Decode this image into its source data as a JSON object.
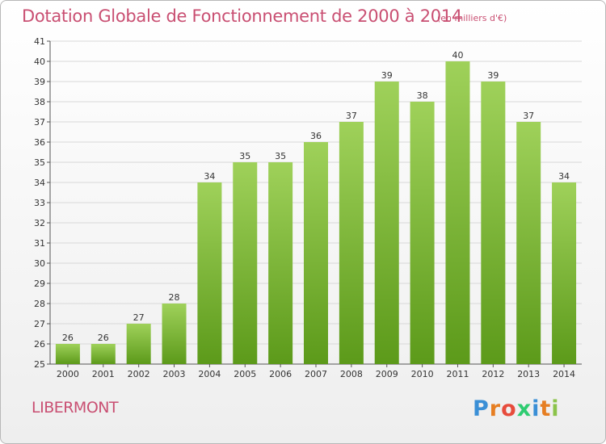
{
  "title": "Dotation Globale de Fonctionnement de 2000 à 2014",
  "subtitle": "(en milliers d'€)",
  "commune": "LIBERMONT",
  "logo": {
    "letters": [
      "P",
      "r",
      "o",
      "x",
      "i",
      "t",
      "i"
    ],
    "colors": [
      "#3a8fd6",
      "#e67e22",
      "#e74c3c",
      "#2ecc71",
      "#3a8fd6",
      "#e67e22",
      "#8bc34a"
    ]
  },
  "colors": {
    "title": "#c94f72",
    "bar_top": "#9fd15a",
    "bar_bottom": "#5c9a1a",
    "grid": "#d8d8d8"
  },
  "chart_data": {
    "type": "bar",
    "title": "Dotation Globale de Fonctionnement de 2000 à 2014",
    "subtitle": "(en milliers d'€)",
    "categories": [
      "2000",
      "2001",
      "2002",
      "2003",
      "2004",
      "2005",
      "2006",
      "2007",
      "2008",
      "2009",
      "2010",
      "2011",
      "2012",
      "2013",
      "2014"
    ],
    "values": [
      26,
      26,
      27,
      28,
      34,
      35,
      35,
      36,
      37,
      39,
      38,
      40,
      39,
      37,
      34
    ],
    "xlabel": "",
    "ylabel": "",
    "ylim": [
      25,
      41
    ],
    "yticks": [
      25,
      26,
      27,
      28,
      29,
      30,
      31,
      32,
      33,
      34,
      35,
      36,
      37,
      38,
      39,
      40,
      41
    ],
    "grid": true,
    "data_labels": true
  }
}
